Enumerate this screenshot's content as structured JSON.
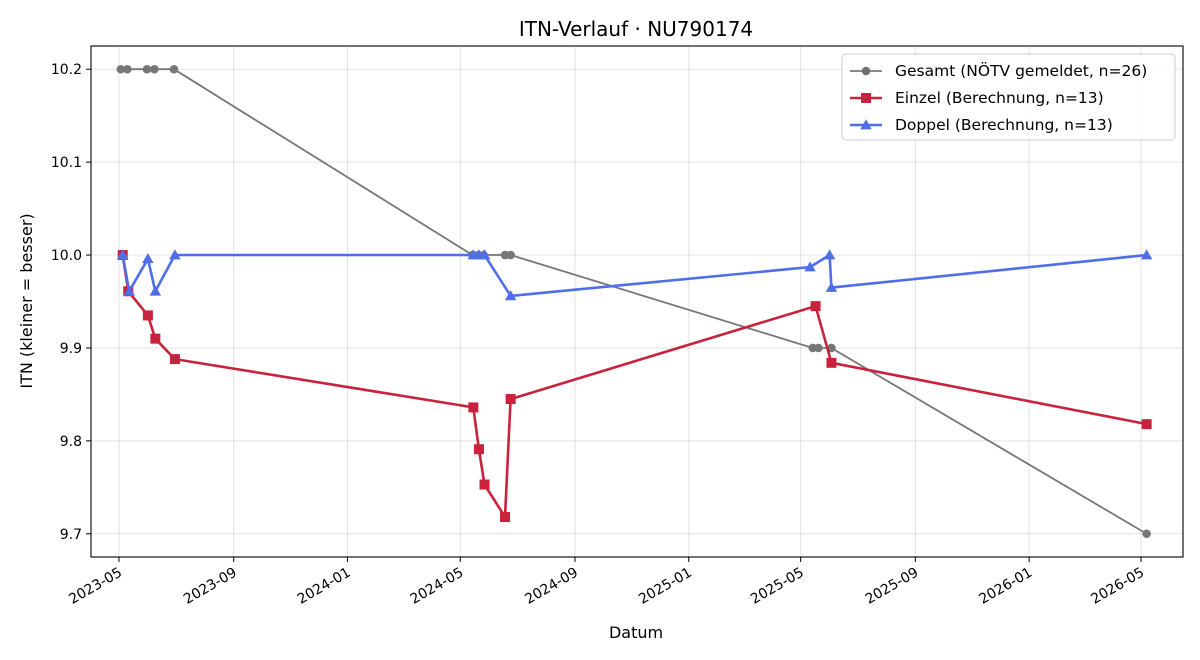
{
  "chart_data": {
    "type": "line",
    "title": "ITN-Verlauf · NU790174",
    "xlabel": "Datum",
    "ylabel": "ITN  (kleiner = besser)",
    "xlim": [
      "2023-04-01",
      "2026-06-15"
    ],
    "ylim": [
      9.675,
      10.225
    ],
    "x_ticks": [
      "2023-05",
      "2023-09",
      "2024-01",
      "2024-05",
      "2024-09",
      "2025-01",
      "2025-05",
      "2025-09",
      "2026-01",
      "2026-05"
    ],
    "y_ticks": [
      "9.7",
      "9.8",
      "9.9",
      "10.0",
      "10.1",
      "10.2"
    ],
    "grid": true,
    "legend_position": "top-right",
    "series": [
      {
        "name": "Gesamt (NÖTV gemeldet, n=26)",
        "color": "#707070",
        "marker": "circle",
        "points": [
          [
            "2023-05-03",
            10.2
          ],
          [
            "2023-05-10",
            10.2
          ],
          [
            "2023-05-31",
            10.2
          ],
          [
            "2023-06-08",
            10.2
          ],
          [
            "2023-06-29",
            10.2
          ],
          [
            "2024-05-14",
            10.0
          ],
          [
            "2024-05-20",
            10.0
          ],
          [
            "2024-05-26",
            10.0
          ],
          [
            "2024-06-18",
            10.0
          ],
          [
            "2024-06-24",
            10.0
          ],
          [
            "2025-05-14",
            9.9
          ],
          [
            "2025-05-20",
            9.9
          ],
          [
            "2025-06-03",
            9.9
          ],
          [
            "2026-05-07",
            9.7
          ]
        ]
      },
      {
        "name": "Einzel (Berechnung, n=13)",
        "color": "#c8223c",
        "marker": "square",
        "points": [
          [
            "2023-05-05",
            10.0
          ],
          [
            "2023-05-11",
            9.961
          ],
          [
            "2023-06-01",
            9.935
          ],
          [
            "2023-06-09",
            9.91
          ],
          [
            "2023-06-30",
            9.888
          ],
          [
            "2024-05-15",
            9.836
          ],
          [
            "2024-05-21",
            9.791
          ],
          [
            "2024-05-27",
            9.753
          ],
          [
            "2024-06-18",
            9.718
          ],
          [
            "2024-06-24",
            9.845
          ],
          [
            "2025-05-17",
            9.945
          ],
          [
            "2025-06-03",
            9.884
          ],
          [
            "2026-05-07",
            9.818
          ]
        ]
      },
      {
        "name": "Doppel (Berechnung, n=13)",
        "color": "#4f6fe8",
        "marker": "triangle",
        "points": [
          [
            "2023-05-05",
            10.0
          ],
          [
            "2023-05-12",
            9.961
          ],
          [
            "2023-06-01",
            9.996
          ],
          [
            "2023-06-09",
            9.961
          ],
          [
            "2023-06-30",
            10.0
          ],
          [
            "2024-05-15",
            10.0
          ],
          [
            "2024-05-21",
            10.0
          ],
          [
            "2024-05-27",
            10.0
          ],
          [
            "2024-06-24",
            9.956
          ],
          [
            "2025-05-11",
            9.987
          ],
          [
            "2025-06-01",
            10.0
          ],
          [
            "2025-06-03",
            9.965
          ],
          [
            "2026-05-07",
            10.0
          ]
        ]
      }
    ]
  }
}
